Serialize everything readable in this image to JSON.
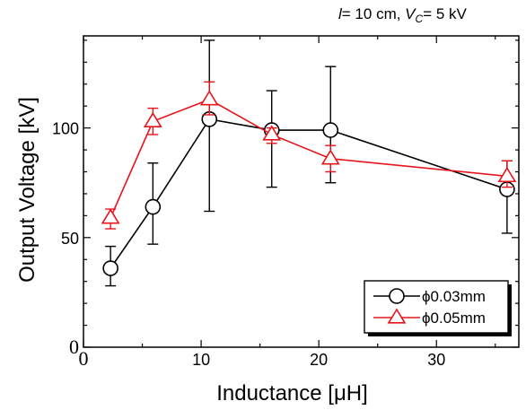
{
  "chart_data": {
    "type": "line",
    "annotation": {
      "l_symbol": "l",
      "l_text": "= 10 cm, ",
      "v_symbol": "V",
      "v_sub": "C",
      "v_text": "= 5 kV"
    },
    "xlabel": "Inductance [μH]",
    "ylabel": "Output Voltage [kV]",
    "xlim": [
      0,
      37
    ],
    "ylim": [
      0,
      142
    ],
    "xticks": [
      0,
      10,
      20,
      30
    ],
    "yticks": [
      0,
      50,
      100
    ],
    "grid": false,
    "legend_position": "bottom-right",
    "series": [
      {
        "name": "ϕ0.03mm",
        "marker": "circle",
        "color": "#000000",
        "points": [
          {
            "x": 2.3,
            "y": 36,
            "err_low": 28,
            "err_high": 46
          },
          {
            "x": 5.9,
            "y": 64,
            "err_low": 47,
            "err_high": 84
          },
          {
            "x": 10.7,
            "y": 104,
            "err_low": 62,
            "err_high": 140
          },
          {
            "x": 16.0,
            "y": 99,
            "err_low": 73,
            "err_high": 117
          },
          {
            "x": 21.0,
            "y": 99,
            "err_low": 75,
            "err_high": 128
          },
          {
            "x": 36.0,
            "y": 72,
            "err_low": 52,
            "err_high": 85
          }
        ]
      },
      {
        "name": "ϕ0.05mm",
        "marker": "triangle",
        "color": "#e8141b",
        "points": [
          {
            "x": 2.3,
            "y": 59,
            "err_low": 54,
            "err_high": 63
          },
          {
            "x": 5.9,
            "y": 103,
            "err_low": 97,
            "err_high": 109
          },
          {
            "x": 10.7,
            "y": 113,
            "err_low": 106,
            "err_high": 121
          },
          {
            "x": 16.0,
            "y": 97,
            "err_low": 93,
            "err_high": 100
          },
          {
            "x": 21.0,
            "y": 86,
            "err_low": 80,
            "err_high": 92
          },
          {
            "x": 36.0,
            "y": 78,
            "err_low": 73,
            "err_high": 85
          }
        ]
      }
    ]
  }
}
